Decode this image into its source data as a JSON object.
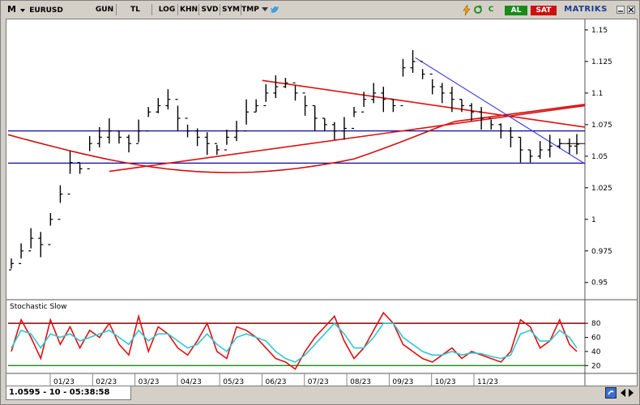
{
  "toolbar": {
    "symbol_prefix": "M",
    "symbol": "EURUSD",
    "buttons": [
      "GUN",
      "TL",
      "LOG",
      "KHN",
      "SVD",
      "SYM",
      "TMP"
    ],
    "c_label": "C",
    "al_label": "AL",
    "sat_label": "SAT",
    "brand": "MATRIKS",
    "colors": {
      "al": "#1a8a1a",
      "sat": "#cc1010",
      "brand": "#1a3d8f"
    }
  },
  "status": {
    "readout": "1.0595 - 10 - 05:38:58"
  },
  "chart_data": [
    {
      "type": "line",
      "subtype": "ohlc-bars",
      "title": "",
      "x_tick_labels": [
        "01/23",
        "02/23",
        "03/23",
        "04/23",
        "05/23",
        "06/23",
        "07/23",
        "08/23",
        "09/23",
        "10/23",
        "11/23"
      ],
      "y_tick_labels": [
        "1.15",
        "1.125",
        "1.1",
        "1.075",
        "1.05",
        "1.025",
        "1",
        "0.975",
        "0.95"
      ],
      "ylim": [
        0.937,
        1.157
      ],
      "x": [
        0,
        8,
        16,
        24,
        32,
        40,
        48,
        56,
        64,
        72,
        80,
        88,
        96,
        104,
        112,
        120,
        128,
        136,
        144,
        152,
        160,
        168,
        176,
        184,
        192,
        200,
        208,
        216,
        224,
        232,
        240,
        248,
        256,
        264,
        272,
        280,
        288,
        296,
        304,
        312,
        320,
        328,
        336,
        344,
        352,
        360,
        368,
        376,
        384,
        392,
        400,
        408,
        416,
        424,
        432,
        440,
        448,
        456,
        462
      ],
      "close": [
        0.965,
        0.975,
        0.985,
        0.98,
        1.0,
        1.02,
        1.045,
        1.04,
        1.06,
        1.065,
        1.07,
        1.065,
        1.06,
        1.07,
        1.085,
        1.09,
        1.095,
        1.08,
        1.07,
        1.065,
        1.06,
        1.055,
        1.065,
        1.07,
        1.085,
        1.09,
        1.1,
        1.105,
        1.108,
        1.1,
        1.09,
        1.08,
        1.075,
        1.07,
        1.072,
        1.085,
        1.095,
        1.1,
        1.095,
        1.09,
        1.12,
        1.125,
        1.115,
        1.105,
        1.1,
        1.095,
        1.09,
        1.085,
        1.08,
        1.075,
        1.07,
        1.065,
        1.055,
        1.05,
        1.055,
        1.058,
        1.06,
        1.058,
        1.0595
      ],
      "horizontal_lines": [
        1.07,
        1.0445,
        1.06
      ],
      "series_colors": {
        "price": "#000000",
        "trend": "#e01010",
        "channel": "#0a0aa0",
        "down_trend": "#2a2ae0",
        "ma": "#d01010"
      }
    },
    {
      "type": "line",
      "title": "Stochastic Slow",
      "y_tick_labels": [
        "80",
        "60",
        "40",
        "20"
      ],
      "ylim": [
        10,
        102
      ],
      "levels": [
        80,
        20
      ],
      "series": [
        {
          "name": "",
          "values": [
            40,
            85,
            60,
            30,
            85,
            50,
            75,
            45,
            70,
            60,
            80,
            50,
            35,
            90,
            40,
            75,
            65,
            45,
            35,
            55,
            80,
            40,
            30,
            75,
            70,
            60,
            45,
            30,
            25,
            15,
            40,
            60,
            75,
            90,
            55,
            30,
            45,
            70,
            95,
            80,
            50,
            40,
            30,
            25,
            35,
            45,
            30,
            40,
            35,
            30,
            25,
            40,
            85,
            75,
            45,
            55,
            85,
            50,
            40
          ]
        },
        {
          "name": "",
          "values": [
            45,
            70,
            65,
            45,
            65,
            60,
            65,
            55,
            60,
            65,
            70,
            60,
            50,
            70,
            55,
            65,
            65,
            55,
            45,
            50,
            65,
            50,
            40,
            60,
            65,
            60,
            55,
            40,
            30,
            25,
            35,
            50,
            65,
            80,
            65,
            45,
            45,
            60,
            80,
            80,
            60,
            50,
            40,
            35,
            35,
            40,
            35,
            38,
            37,
            33,
            30,
            35,
            65,
            70,
            55,
            55,
            70,
            60,
            45
          ]
        }
      ],
      "series_colors": [
        "#e01010",
        "#30c8d0"
      ]
    }
  ]
}
